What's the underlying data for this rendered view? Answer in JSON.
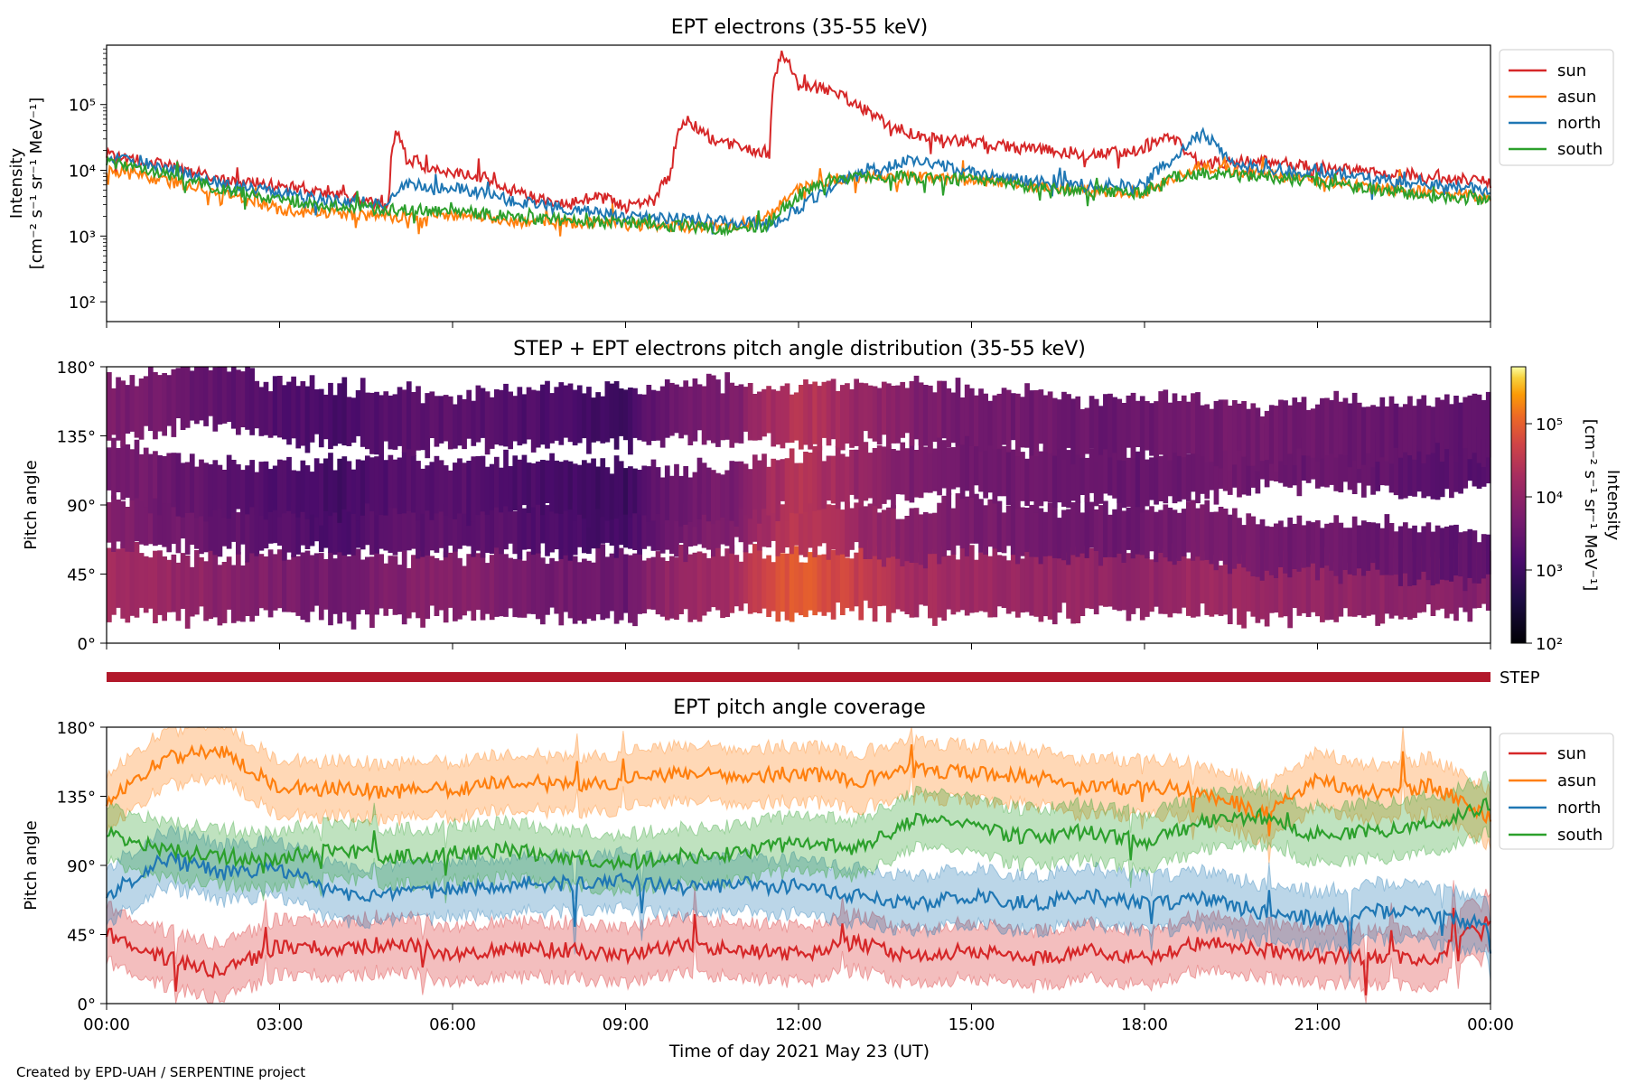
{
  "figure": {
    "credit": "Created by EPD-UAH / SERPENTINE project",
    "xlabel": "Time of day 2021 May 23 (UT)",
    "xticks": [
      "00:00",
      "03:00",
      "06:00",
      "09:00",
      "12:00",
      "15:00",
      "18:00",
      "21:00",
      "00:00"
    ]
  },
  "colors": {
    "sun": "#d62728",
    "asun": "#ff7f0e",
    "north": "#1f77b4",
    "south": "#2ca02c",
    "step_bar": "#b2182b"
  },
  "chart_data": [
    {
      "type": "line",
      "title": "EPT electrons (35-55 keV)",
      "ylabel": "Intensity",
      "ylabel_unit": "[cm⁻² s⁻¹ sr⁻¹ MeV⁻¹]",
      "yscale": "log",
      "ylim": [
        50,
        800000
      ],
      "yticks": [
        "10²",
        "10³",
        "10⁴",
        "10⁵"
      ],
      "ytick_values": [
        100,
        1000,
        10000,
        100000
      ],
      "xlim_hours": [
        0,
        24
      ],
      "legend_position": "outside-right",
      "series": [
        {
          "name": "sun",
          "x": [
            0,
            1,
            2,
            3,
            4,
            4.5,
            4.9,
            5.0,
            5.2,
            5.6,
            6,
            6.5,
            7,
            7.5,
            8,
            8.5,
            9,
            9.5,
            9.8,
            10,
            10.5,
            11,
            11.5,
            11.7,
            12,
            12.5,
            13,
            13.5,
            14,
            15,
            16,
            17,
            18,
            18.4,
            18.8,
            19,
            20,
            21,
            22,
            23,
            24
          ],
          "values": [
            17000,
            12000,
            7000,
            6000,
            4200,
            3500,
            2500,
            40000,
            15000,
            11000,
            9000,
            8000,
            5000,
            3500,
            3000,
            4000,
            2800,
            3500,
            9000,
            60000,
            30000,
            22000,
            16000,
            550000,
            200000,
            170000,
            100000,
            50000,
            35000,
            27000,
            21000,
            18000,
            20000,
            35000,
            16000,
            12000,
            14000,
            11000,
            9500,
            8000,
            6500
          ]
        },
        {
          "name": "asun",
          "x": [
            0,
            1,
            2,
            3,
            4,
            5,
            6,
            7,
            8,
            9,
            10,
            11,
            11.5,
            12,
            12.5,
            13,
            14,
            15,
            16,
            17,
            18,
            18.5,
            19,
            20,
            21,
            22,
            23,
            24
          ],
          "values": [
            10000,
            7000,
            4500,
            2500,
            2200,
            2000,
            2100,
            1700,
            1600,
            1500,
            1400,
            1500,
            2000,
            5000,
            7000,
            8000,
            8000,
            7000,
            6000,
            5000,
            4500,
            7000,
            11000,
            9000,
            7000,
            5500,
            4500,
            4000
          ]
        },
        {
          "name": "north",
          "x": [
            0,
            1,
            2,
            3,
            4,
            4.9,
            5.2,
            6,
            7,
            8,
            9,
            10,
            11,
            11.5,
            12,
            12.5,
            13,
            13.5,
            14,
            14.5,
            15,
            16,
            17,
            18,
            18.5,
            19,
            19.5,
            20,
            21,
            22,
            23,
            24
          ],
          "values": [
            16000,
            11000,
            6000,
            4500,
            3500,
            3000,
            6000,
            5500,
            3500,
            2500,
            2000,
            1800,
            1600,
            1500,
            2500,
            5000,
            9000,
            11000,
            15000,
            12000,
            9000,
            7000,
            6000,
            6000,
            15000,
            35000,
            13000,
            11000,
            9000,
            7500,
            6000,
            5000
          ]
        },
        {
          "name": "south",
          "x": [
            0,
            1,
            2,
            3,
            4,
            5,
            6,
            7,
            8,
            9,
            10,
            11,
            11.5,
            12,
            12.5,
            13,
            14,
            15,
            16,
            17,
            18,
            18.5,
            19,
            20,
            21,
            22,
            23,
            24
          ],
          "values": [
            13000,
            9000,
            5000,
            3500,
            2800,
            2500,
            2400,
            2000,
            1700,
            1600,
            1400,
            1200,
            1500,
            4000,
            7000,
            8000,
            8000,
            7000,
            5500,
            5000,
            4500,
            8000,
            9000,
            8000,
            6500,
            5000,
            4000,
            3500
          ]
        }
      ]
    },
    {
      "type": "heatmap",
      "title": "STEP + EPT electrons pitch angle distribution (35-55 keV)",
      "ylabel": "Pitch angle",
      "yticks": [
        "0°",
        "45°",
        "90°",
        "135°",
        "180°"
      ],
      "ylim": [
        0,
        180
      ],
      "xlim_hours": [
        0,
        24
      ],
      "colorbar": {
        "label": "Intensity",
        "unit": "[cm⁻² s⁻¹ sr⁻¹ MeV⁻¹]",
        "scale": "log",
        "range": [
          100,
          600000
        ],
        "ticks": [
          "10²",
          "10³",
          "10⁴",
          "10⁵"
        ],
        "colormap": "inferno"
      },
      "bands": [
        {
          "name": "sun",
          "center": [
            40,
            38,
            35,
            38,
            38,
            36,
            38,
            37,
            38,
            36,
            38,
            40,
            38,
            42,
            38,
            40,
            38,
            42,
            40,
            38,
            36,
            38,
            36,
            40,
            42
          ],
          "width": 40
        },
        {
          "name": "north",
          "center": [
            75,
            80,
            75,
            76,
            78,
            76,
            76,
            76,
            75,
            78,
            75,
            80,
            76,
            75,
            68,
            80,
            70,
            74,
            72,
            72,
            60,
            62,
            62,
            58,
            55
          ],
          "width": 32
        },
        {
          "name": "south",
          "center": [
            115,
            105,
            100,
            100,
            100,
            105,
            100,
            104,
            100,
            98,
            96,
            100,
            104,
            108,
            112,
            118,
            108,
            110,
            108,
            112,
            120,
            118,
            118,
            112,
            120
          ],
          "width": 34
        },
        {
          "name": "asun",
          "center": [
            150,
            158,
            162,
            150,
            148,
            145,
            145,
            148,
            148,
            148,
            152,
            150,
            148,
            150,
            150,
            148,
            145,
            140,
            142,
            140,
            135,
            140,
            138,
            142,
            140
          ],
          "width": 36
        }
      ],
      "intensity_hourly": [
        12000,
        8000,
        5000,
        3500,
        2600,
        4000,
        4500,
        3500,
        2600,
        2000,
        8000,
        12000,
        60000,
        25000,
        12000,
        9000,
        8000,
        7000,
        6500,
        9000,
        8000,
        7000,
        6000,
        5000,
        4500
      ]
    },
    {
      "type": "bar",
      "label": "STEP",
      "x_hours": [
        0,
        24
      ]
    },
    {
      "type": "area",
      "title": "EPT pitch angle coverage",
      "ylabel": "Pitch angle",
      "yticks": [
        "0°",
        "45°",
        "90°",
        "135°",
        "180°"
      ],
      "ylim": [
        0,
        180
      ],
      "xlim_hours": [
        0,
        24
      ],
      "legend_position": "outside-right",
      "band_halfwidth": 18,
      "series": [
        {
          "name": "sun",
          "values": [
            45,
            30,
            20,
            38,
            35,
            40,
            32,
            35,
            35,
            32,
            38,
            35,
            32,
            40,
            30,
            35,
            28,
            35,
            30,
            40,
            35,
            32,
            30,
            30,
            55
          ]
        },
        {
          "name": "asun",
          "values": [
            130,
            160,
            165,
            140,
            140,
            138,
            140,
            145,
            142,
            145,
            150,
            148,
            150,
            145,
            152,
            150,
            148,
            140,
            142,
            138,
            125,
            145,
            138,
            142,
            120
          ]
        },
        {
          "name": "north",
          "values": [
            70,
            95,
            85,
            88,
            72,
            70,
            75,
            78,
            78,
            80,
            75,
            78,
            75,
            70,
            65,
            70,
            65,
            70,
            65,
            68,
            60,
            55,
            60,
            58,
            50
          ]
        },
        {
          "name": "south",
          "values": [
            110,
            100,
            95,
            95,
            100,
            95,
            98,
            100,
            95,
            92,
            96,
            98,
            105,
            100,
            120,
            115,
            108,
            112,
            105,
            118,
            120,
            110,
            112,
            115,
            130
          ]
        }
      ]
    }
  ]
}
